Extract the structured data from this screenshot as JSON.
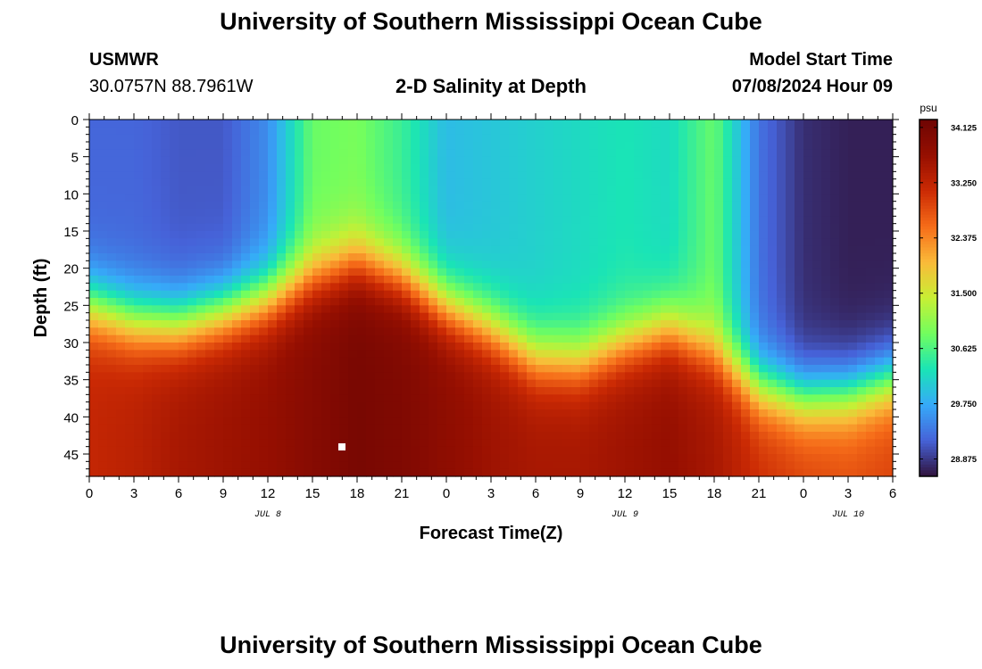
{
  "header": {
    "title": "University of Southern Mississippi Ocean Cube",
    "station_id": "USMWR",
    "station_coords": "30.0757N  88.7961W",
    "subtitle": "2-D Salinity at Depth",
    "model_start_label": "Model Start Time",
    "model_start_value": "07/08/2024 Hour 09"
  },
  "footer": {
    "title": "University of Southern Mississippi Ocean Cube"
  },
  "chart_data": {
    "type": "heatmap",
    "title": "2-D Salinity at Depth",
    "xlabel": "Forecast Time(Z)",
    "ylabel": "Depth (ft)",
    "x_tick_labels": [
      "0",
      "3",
      "6",
      "9",
      "12",
      "15",
      "18",
      "21",
      "0",
      "3",
      "6",
      "9",
      "12",
      "15",
      "18",
      "21",
      "0",
      "3",
      "6"
    ],
    "date_labels": [
      {
        "text": "JUL 8",
        "tick_index": 4
      },
      {
        "text": "JUL 9",
        "tick_index": 12
      },
      {
        "text": "JUL 10",
        "tick_index": 17
      }
    ],
    "y_ticks": [
      0,
      5,
      10,
      15,
      20,
      25,
      30,
      35,
      40,
      45
    ],
    "ylim": [
      0,
      48
    ],
    "y_inverted": true,
    "x_hours_range": [
      0,
      54
    ],
    "colorbar": {
      "unit": "psu",
      "ticks": [
        "34.125",
        "33.250",
        "32.375",
        "31.500",
        "30.625",
        "29.750",
        "28.875"
      ],
      "range": [
        28.6,
        34.25
      ],
      "colormap": "turbo"
    },
    "profile_columns_hours": [
      0,
      3,
      6,
      9,
      12,
      15,
      18,
      21,
      24,
      27,
      30,
      33,
      36,
      39,
      42,
      45,
      48,
      51,
      54
    ],
    "surface_salinity": [
      29.2,
      29.2,
      29.1,
      29.1,
      29.5,
      30.8,
      30.9,
      30.5,
      29.9,
      30.0,
      30.1,
      30.2,
      30.3,
      30.2,
      30.8,
      29.3,
      28.8,
      28.7,
      28.7
    ],
    "halocline_depth_ft": [
      25,
      27,
      27.5,
      26,
      24,
      21,
      19,
      21,
      25,
      28,
      32,
      32.5,
      30,
      28,
      31,
      36,
      37.5,
      37,
      35
    ],
    "deep_salinity": [
      33.2,
      33.3,
      33.5,
      33.6,
      33.7,
      33.9,
      34.1,
      34.0,
      33.8,
      33.6,
      33.5,
      33.5,
      33.6,
      33.7,
      33.5,
      33.1,
      32.9,
      32.8,
      32.9
    ]
  }
}
